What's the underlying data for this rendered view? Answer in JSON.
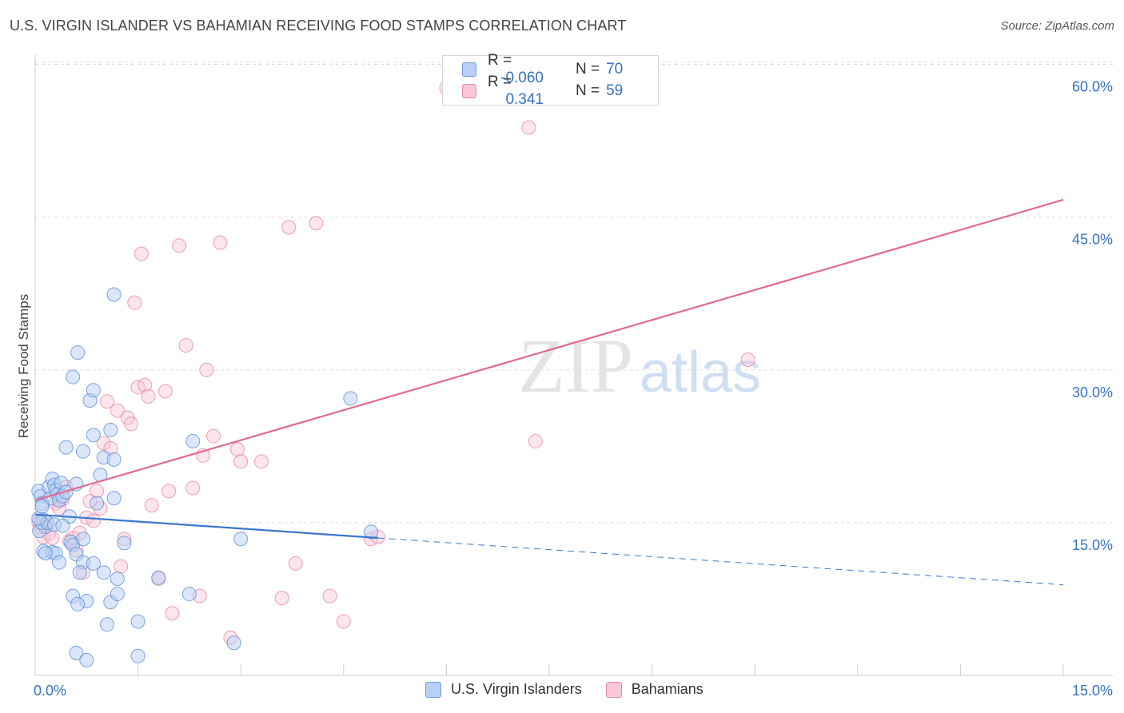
{
  "header": {
    "title": "U.S. VIRGIN ISLANDER VS BAHAMIAN RECEIVING FOOD STAMPS CORRELATION CHART",
    "source": "Source: ZipAtlas.com"
  },
  "watermark": {
    "zip": "ZIP",
    "atlas": "atlas"
  },
  "legend": {
    "rows": [
      {
        "r_label": "R =",
        "r_value": "-0.060",
        "n_label": "N =",
        "n_value": "70",
        "color": "#6c9be0",
        "fill": "#b8d0f3"
      },
      {
        "r_label": "R =",
        "r_value": "0.341",
        "n_label": "N =",
        "n_value": "59",
        "color": "#e88aa8",
        "fill": "#f8c8d8"
      }
    ]
  },
  "bottom_legend": [
    {
      "label": "U.S. Virgin Islanders",
      "color": "#6c9be0",
      "fill": "#b8d0f3"
    },
    {
      "label": "Bahamians",
      "color": "#e88aa8",
      "fill": "#f8c8d8"
    }
  ],
  "chart_data": {
    "type": "scatter",
    "title": "U.S. VIRGIN ISLANDER VS BAHAMIAN RECEIVING FOOD STAMPS CORRELATION CHART",
    "xlabel": "",
    "ylabel": "Receiving Food Stamps",
    "xlim": [
      0,
      15
    ],
    "ylim": [
      0,
      60
    ],
    "x_tick_labels": [
      "0.0%",
      "15.0%"
    ],
    "y_ticks": [
      15,
      30,
      45,
      60
    ],
    "y_tick_labels": [
      "15.0%",
      "30.0%",
      "45.0%",
      "60.0%"
    ],
    "grid": true,
    "series": [
      {
        "name": "U.S. Virgin Islanders",
        "color": "#5a8fd8",
        "fill": "#b8d0f3",
        "trend": {
          "x0": 0.0,
          "y0": 15.8,
          "x1": 5.0,
          "y1": 13.5,
          "x_dash_end": 15.0,
          "y_dash_end": 8.9
        },
        "points": [
          [
            0.05,
            18.1
          ],
          [
            0.08,
            17.6
          ],
          [
            0.1,
            16.9
          ],
          [
            0.12,
            15.3
          ],
          [
            0.15,
            14.6
          ],
          [
            0.06,
            14.2
          ],
          [
            0.09,
            15.0
          ],
          [
            0.2,
            18.5
          ],
          [
            0.22,
            17.4
          ],
          [
            0.25,
            19.3
          ],
          [
            0.28,
            18.7
          ],
          [
            0.3,
            18.2
          ],
          [
            0.32,
            17.8
          ],
          [
            0.35,
            17.2
          ],
          [
            0.38,
            18.9
          ],
          [
            0.4,
            17.6
          ],
          [
            0.45,
            18.0
          ],
          [
            0.5,
            15.6
          ],
          [
            0.52,
            13.1
          ],
          [
            0.55,
            12.8
          ],
          [
            0.6,
            18.8
          ],
          [
            0.18,
            15.0
          ],
          [
            0.28,
            14.8
          ],
          [
            0.4,
            14.7
          ],
          [
            0.12,
            12.2
          ],
          [
            0.25,
            12.1
          ],
          [
            0.3,
            12.0
          ],
          [
            0.35,
            11.1
          ],
          [
            0.6,
            11.9
          ],
          [
            0.7,
            11.1
          ],
          [
            0.65,
            10.1
          ],
          [
            0.85,
            11.0
          ],
          [
            1.0,
            10.1
          ],
          [
            0.45,
            22.4
          ],
          [
            0.55,
            29.3
          ],
          [
            0.62,
            31.7
          ],
          [
            0.55,
            7.8
          ],
          [
            0.75,
            7.3
          ],
          [
            0.62,
            7.0
          ],
          [
            1.1,
            7.2
          ],
          [
            1.05,
            5.0
          ],
          [
            1.2,
            8.0
          ],
          [
            0.6,
            2.2
          ],
          [
            0.75,
            1.5
          ],
          [
            1.5,
            1.9
          ],
          [
            1.5,
            5.3
          ],
          [
            1.2,
            9.5
          ],
          [
            1.3,
            13.0
          ],
          [
            1.15,
            17.4
          ],
          [
            1.1,
            24.1
          ],
          [
            1.0,
            21.4
          ],
          [
            0.8,
            27.0
          ],
          [
            0.85,
            28.0
          ],
          [
            0.7,
            22.0
          ],
          [
            0.85,
            23.6
          ],
          [
            0.95,
            19.7
          ],
          [
            1.15,
            21.2
          ],
          [
            1.15,
            37.4
          ],
          [
            2.3,
            23.0
          ],
          [
            2.25,
            8.0
          ],
          [
            1.8,
            9.6
          ],
          [
            2.9,
            3.2
          ],
          [
            3.0,
            13.4
          ],
          [
            4.9,
            14.1
          ],
          [
            4.6,
            27.2
          ],
          [
            0.05,
            15.4
          ],
          [
            0.1,
            16.6
          ],
          [
            0.15,
            12.0
          ],
          [
            0.7,
            13.4
          ],
          [
            0.9,
            16.9
          ]
        ]
      },
      {
        "name": "Bahamians",
        "color": "#e27b9d",
        "fill": "#f8c8d8",
        "trend": {
          "x0": 0.0,
          "y0": 17.2,
          "x1": 15.0,
          "y1": 46.7
        },
        "points": [
          [
            0.05,
            15.0
          ],
          [
            0.08,
            14.6
          ],
          [
            0.12,
            13.6
          ],
          [
            0.15,
            14.8
          ],
          [
            0.2,
            13.9
          ],
          [
            0.25,
            13.5
          ],
          [
            0.3,
            16.9
          ],
          [
            0.35,
            16.4
          ],
          [
            0.4,
            17.3
          ],
          [
            0.45,
            18.5
          ],
          [
            0.5,
            13.2
          ],
          [
            0.55,
            13.5
          ],
          [
            0.6,
            12.3
          ],
          [
            0.65,
            14.0
          ],
          [
            0.7,
            10.1
          ],
          [
            0.75,
            15.5
          ],
          [
            0.8,
            17.1
          ],
          [
            0.85,
            15.2
          ],
          [
            0.9,
            18.1
          ],
          [
            0.95,
            16.4
          ],
          [
            1.0,
            22.8
          ],
          [
            1.05,
            26.9
          ],
          [
            1.1,
            22.3
          ],
          [
            1.2,
            26.0
          ],
          [
            1.25,
            10.7
          ],
          [
            1.3,
            13.4
          ],
          [
            1.35,
            25.3
          ],
          [
            1.4,
            24.7
          ],
          [
            1.45,
            36.6
          ],
          [
            1.55,
            41.4
          ],
          [
            1.5,
            28.3
          ],
          [
            1.6,
            28.5
          ],
          [
            1.65,
            27.4
          ],
          [
            1.7,
            16.7
          ],
          [
            1.8,
            9.5
          ],
          [
            1.9,
            27.9
          ],
          [
            1.95,
            18.1
          ],
          [
            2.0,
            6.1
          ],
          [
            2.1,
            42.2
          ],
          [
            2.2,
            32.4
          ],
          [
            2.3,
            18.4
          ],
          [
            2.4,
            7.8
          ],
          [
            2.45,
            21.6
          ],
          [
            2.5,
            30.0
          ],
          [
            2.6,
            23.5
          ],
          [
            2.7,
            42.5
          ],
          [
            2.85,
            3.7
          ],
          [
            2.95,
            22.2
          ],
          [
            3.0,
            21.0
          ],
          [
            3.3,
            21.0
          ],
          [
            3.6,
            7.6
          ],
          [
            3.7,
            44.0
          ],
          [
            3.8,
            11.0
          ],
          [
            4.1,
            44.4
          ],
          [
            4.3,
            7.8
          ],
          [
            4.5,
            5.3
          ],
          [
            4.9,
            13.4
          ],
          [
            5.0,
            13.6
          ],
          [
            7.2,
            53.8
          ]
        ]
      }
    ],
    "extra_points_note": "",
    "outliers": {
      "bahamians_high": [
        [
          6.0,
          57.7
        ],
        [
          10.4,
          31.0
        ],
        [
          7.3,
          23.0
        ]
      ]
    }
  }
}
